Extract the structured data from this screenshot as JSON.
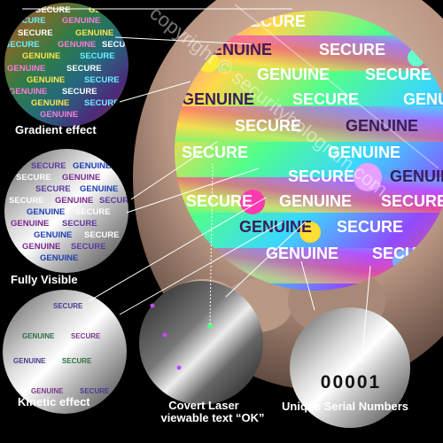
{
  "watermark": "copyright © securityhologram.com",
  "big_hologram": {
    "words": [
      "SECURE",
      "GENUINE"
    ]
  },
  "samples": [
    {
      "caption": "Gradient effect"
    },
    {
      "caption": "Fully Visible"
    },
    {
      "caption": "Kinetic effect"
    },
    {
      "caption_line1": "Covert Laser",
      "caption_line2": "viewable text  “OK”"
    },
    {
      "caption": "Unique Serial Numbers",
      "serial": "00001"
    }
  ],
  "colors": {
    "background": "#000000",
    "skin": "#c9a58f",
    "caption": "#ffffff"
  }
}
